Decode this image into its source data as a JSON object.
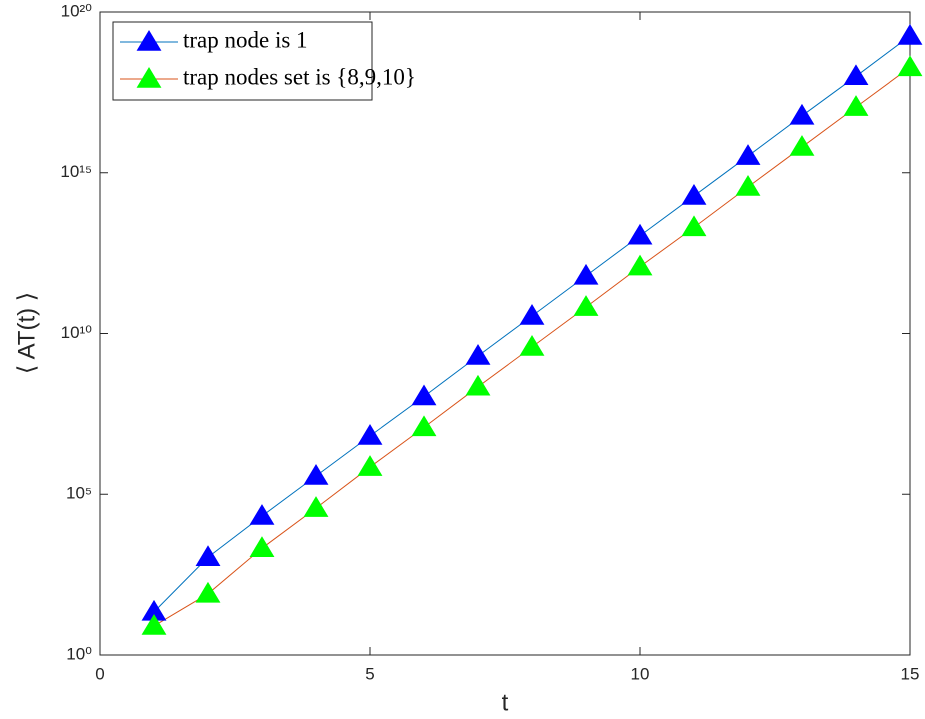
{
  "chart_data": {
    "type": "line",
    "xlabel": "t",
    "ylabel": "⟨ AT(t) ⟩",
    "x": [
      1,
      2,
      3,
      4,
      5,
      6,
      7,
      8,
      9,
      10,
      11,
      12,
      13,
      14,
      15
    ],
    "series": [
      {
        "name": "trap node is 1",
        "color": "#0072bd",
        "marker_color": "#0000ff",
        "values": [
          22,
          1100,
          21000,
          370000,
          6500000,
          110000000,
          2000000000,
          35000000000,
          620000000000,
          11000000000000,
          190000000000000,
          3300000000000000,
          59000000000000000,
          1000000000000000000,
          18000000000000000000
        ]
      },
      {
        "name": "trap nodes set is {8,9,10}",
        "color": "#d95319",
        "marker_color": "#00ff00",
        "values": [
          8,
          80,
          2100,
          37000,
          700000,
          12000000,
          220000000,
          3800000000,
          66000000000,
          1200000000000,
          20000000000000,
          360000000000000,
          6300000000000000,
          110000000000000000,
          1900000000000000000
        ]
      }
    ],
    "xlim": [
      0,
      15
    ],
    "xticks": [
      0,
      5,
      10,
      15
    ],
    "ylim": [
      1,
      100000000000000000000
    ],
    "ylog": true,
    "yticks": [
      {
        "value": 1,
        "label": "10⁰"
      },
      {
        "value": 100000,
        "label": "10⁵"
      },
      {
        "value": 10000000000,
        "label": "10¹⁰"
      },
      {
        "value": 1000000000000000,
        "label": "10¹⁵"
      },
      {
        "value": 100000000000000000000,
        "label": "10²⁰"
      }
    ],
    "legend": "upper left"
  }
}
